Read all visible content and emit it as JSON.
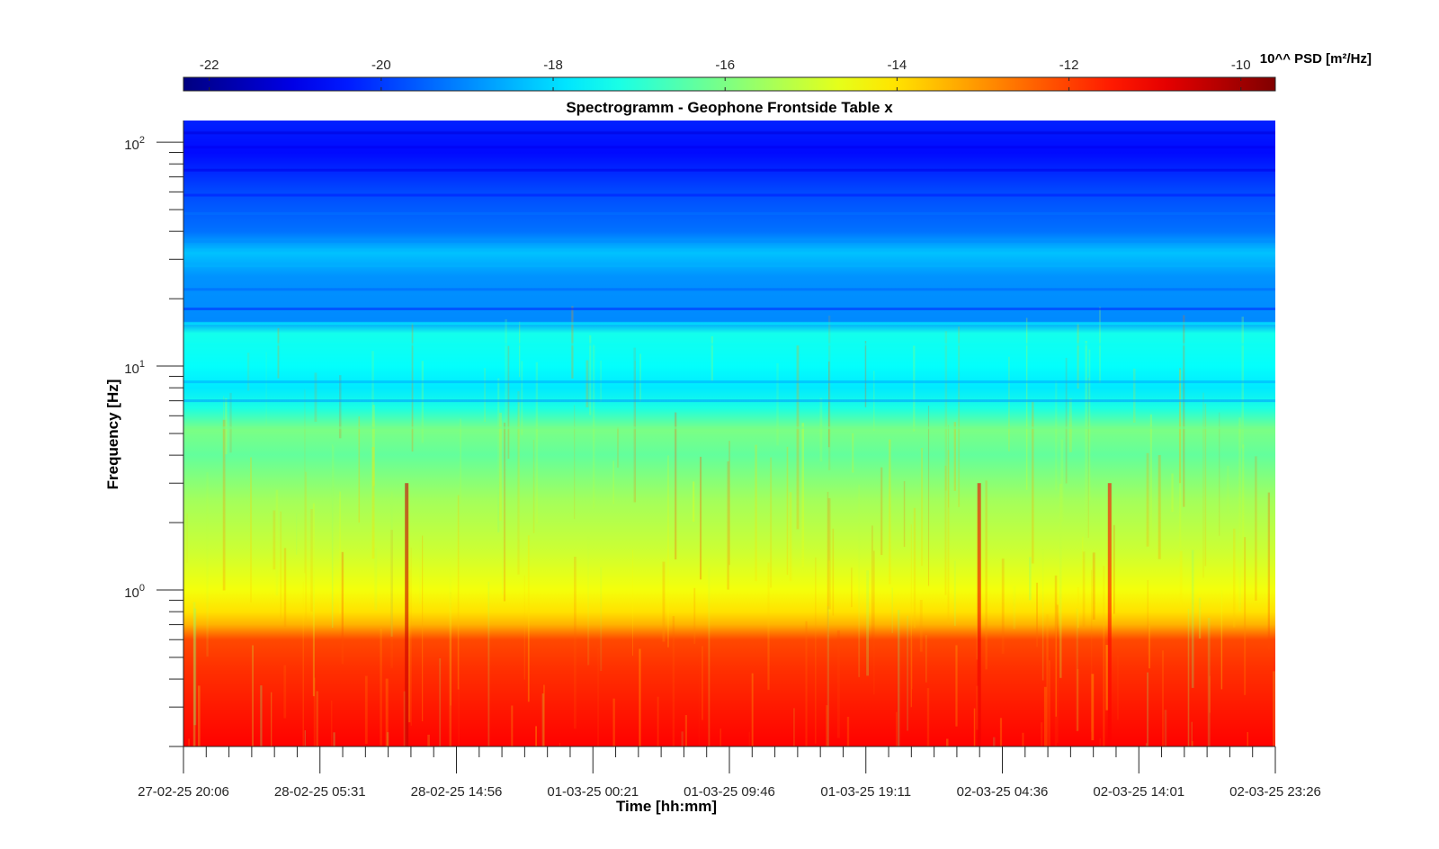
{
  "chart_data": {
    "type": "heatmap",
    "title": "Spectrogramm - Geophone Frontside Table x",
    "xlabel": "Time [hh:mm]",
    "ylabel": "Frequency [Hz]",
    "y_scale": "log",
    "ylim": [
      0.2,
      125
    ],
    "x_ticks": [
      "27-02-25 20:06",
      "28-02-25 05:31",
      "28-02-25 14:56",
      "01-03-25 00:21",
      "01-03-25 09:46",
      "01-03-25 19:11",
      "02-03-25 04:36",
      "02-03-25 14:01",
      "02-03-25 23:26"
    ],
    "y_ticks": [
      {
        "base": "10",
        "exp": "0",
        "value": 1
      },
      {
        "base": "10",
        "exp": "1",
        "value": 10
      },
      {
        "base": "10",
        "exp": "2",
        "value": 100
      }
    ],
    "colorbar": {
      "label": "10^^ PSD [m²/Hz]",
      "colormap": "jet",
      "range": [
        -22.3,
        -9.6
      ],
      "ticks": [
        "-22",
        "-20",
        "-18",
        "-16",
        "-14",
        "-12",
        "-10"
      ],
      "tick_values": [
        -22,
        -20,
        -18,
        -16,
        -14,
        -12,
        -10
      ]
    },
    "frequency_profile": [
      {
        "f": 0.2,
        "log_psd": -11.2
      },
      {
        "f": 0.3,
        "log_psd": -11.5
      },
      {
        "f": 0.45,
        "log_psd": -11.8
      },
      {
        "f": 0.6,
        "log_psd": -12.1
      },
      {
        "f": 0.7,
        "log_psd": -13.4
      },
      {
        "f": 0.8,
        "log_psd": -14.0
      },
      {
        "f": 1.0,
        "log_psd": -14.5
      },
      {
        "f": 1.5,
        "log_psd": -15.0
      },
      {
        "f": 2.5,
        "log_psd": -15.5
      },
      {
        "f": 4.0,
        "log_psd": -16.3
      },
      {
        "f": 5.2,
        "log_psd": -16.0
      },
      {
        "f": 6.5,
        "log_psd": -17.2
      },
      {
        "f": 8.0,
        "log_psd": -17.8
      },
      {
        "f": 10.0,
        "log_psd": -17.5
      },
      {
        "f": 14.0,
        "log_psd": -17.3
      },
      {
        "f": 16.0,
        "log_psd": -19.0
      },
      {
        "f": 25.0,
        "log_psd": -18.9
      },
      {
        "f": 32.0,
        "log_psd": -18.3
      },
      {
        "f": 40.0,
        "log_psd": -19.3
      },
      {
        "f": 60.0,
        "log_psd": -19.8
      },
      {
        "f": 90.0,
        "log_psd": -20.6
      },
      {
        "f": 125.0,
        "log_psd": -20.3
      }
    ],
    "events": [
      {
        "time": "28-02-25 ~11:30",
        "log_psd": -10.5
      },
      {
        "time": "02-03-25 ~03:00",
        "log_psd": -11.0
      },
      {
        "time": "02-03-25 ~12:00",
        "log_psd": -11.2
      }
    ],
    "grid": false
  }
}
